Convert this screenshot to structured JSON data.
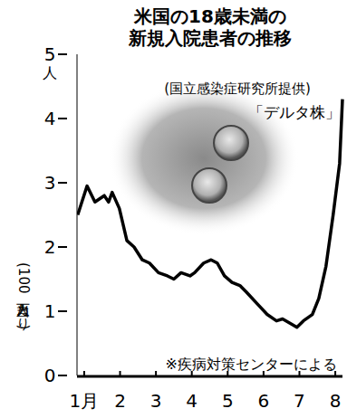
{
  "chart_data": {
    "type": "line",
    "title": [
      "米国の18歳未満の",
      "新規入院患者の推移"
    ],
    "y_unit": "人",
    "y_label": "(100万人当たり)",
    "photo_credit": "(国立感染症研究所提供)",
    "photo_caption": "「デルタ株」",
    "note": "※疾病対策センターによる",
    "x": [
      0.82,
      1.08,
      1.3,
      1.56,
      1.68,
      1.78,
      1.98,
      2.19,
      2.39,
      2.62,
      2.82,
      3.07,
      3.32,
      3.5,
      3.7,
      3.95,
      4.08,
      4.33,
      4.54,
      4.71,
      4.91,
      5.12,
      5.34,
      5.52,
      5.85,
      6.1,
      6.36,
      6.53,
      6.78,
      6.93,
      7.11,
      7.36,
      7.54,
      7.74,
      7.94,
      8.12,
      8.2
    ],
    "values": [
      2.5,
      2.95,
      2.7,
      2.8,
      2.7,
      2.85,
      2.6,
      2.1,
      2.0,
      1.8,
      1.75,
      1.6,
      1.55,
      1.5,
      1.6,
      1.55,
      1.6,
      1.75,
      1.8,
      1.75,
      1.55,
      1.45,
      1.4,
      1.3,
      1.1,
      0.95,
      0.85,
      0.88,
      0.8,
      0.75,
      0.85,
      0.95,
      1.2,
      1.7,
      2.5,
      3.3,
      4.3
    ],
    "color": "#000000",
    "xlim": [
      0.8,
      8.2
    ],
    "xticks": [
      {
        "value": 1,
        "label": "1月"
      },
      2,
      3,
      4,
      5,
      6,
      7,
      8
    ],
    "ylim": [
      0,
      5
    ],
    "yticks": [
      0,
      1,
      2,
      3,
      4,
      5
    ],
    "grid": false
  }
}
